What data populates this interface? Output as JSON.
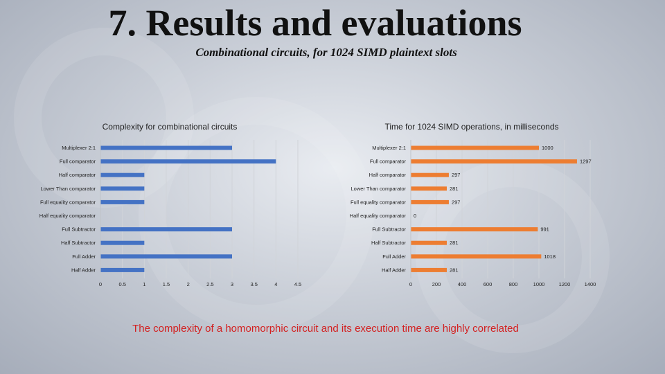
{
  "slide": {
    "title": "7. Results and evaluations",
    "subtitle": "Combinational circuits, for 1024 SIMD plaintext slots",
    "conclusion": "The complexity of a homomorphic circuit and its execution time are highly correlated",
    "conclusion_color": "#d32020"
  },
  "chart_data": [
    {
      "type": "bar",
      "orientation": "horizontal",
      "title": "Complexity for combinational circuits",
      "categories": [
        "Multiplexer 2:1",
        "Full comparator",
        "Half comparator",
        "Lower Than comparator",
        "Full equality comparator",
        "Half equality comparator",
        "Full Subtractor",
        "Half Subtractor",
        "Full Adder",
        "Half Adder"
      ],
      "values": [
        3,
        4,
        1,
        1,
        1,
        0,
        3,
        1,
        3,
        1
      ],
      "xlim": [
        0,
        4.5
      ],
      "xticks": [
        "0",
        "0.5",
        "1",
        "1.5",
        "2",
        "2.5",
        "3",
        "3.5",
        "4",
        "4.5"
      ],
      "color": "#4472c4",
      "gridlines": true,
      "data_labels": false
    },
    {
      "type": "bar",
      "orientation": "horizontal",
      "title": "Time for 1024 SIMD operations, in milliseconds",
      "categories": [
        "Multiplexer 2:1",
        "Full comparator",
        "Half comparator",
        "Lower Than comparator",
        "Full equality comparator",
        "Half equality comparator",
        "Full Subtractor",
        "Half Subtractor",
        "Full Adder",
        "Half Adder"
      ],
      "values": [
        1000,
        1297,
        297,
        281,
        297,
        0,
        991,
        281,
        1018,
        281
      ],
      "value_labels": [
        "1000",
        "1297",
        "297",
        "281",
        "297",
        "0",
        "991",
        "281",
        "1018",
        "281"
      ],
      "xlim": [
        0,
        1400
      ],
      "xticks": [
        "0",
        "200",
        "400",
        "600",
        "800",
        "1000",
        "1200",
        "1400"
      ],
      "color": "#ed7d31",
      "gridlines": true,
      "data_labels": true
    }
  ]
}
